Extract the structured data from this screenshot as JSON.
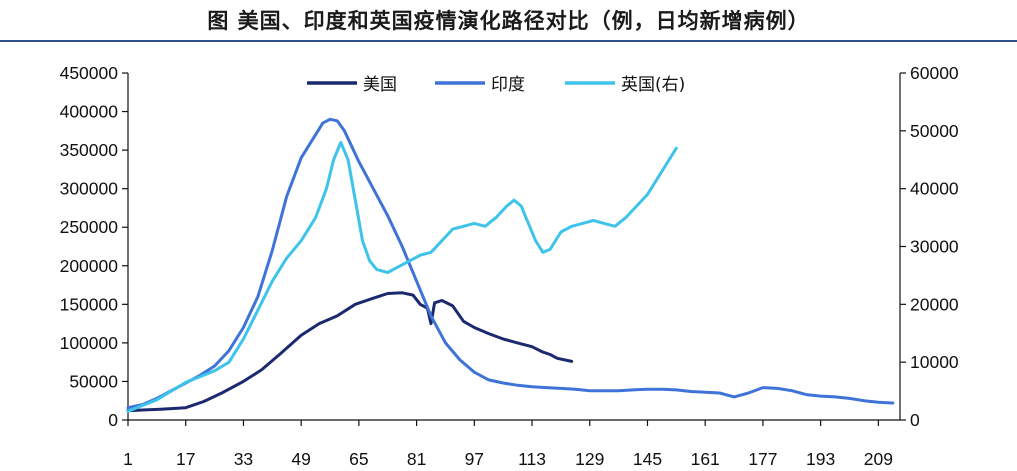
{
  "title": "图  美国、印度和英国疫情演化路径对比（例，日均新增病例）",
  "chart_data": {
    "type": "line",
    "title": "图  美国、印度和英国疫情演化路径对比（例，日均新增病例）",
    "xlabel": "",
    "ylabel": "",
    "x_ticks": [
      "1",
      "17",
      "33",
      "49",
      "65",
      "81",
      "97",
      "113",
      "129",
      "145",
      "161",
      "177",
      "193",
      "209"
    ],
    "y_left_ticks": [
      "0",
      "50000",
      "100000",
      "150000",
      "200000",
      "250000",
      "300000",
      "350000",
      "400000",
      "450000"
    ],
    "y_right_ticks": [
      "0",
      "10000",
      "20000",
      "30000",
      "40000",
      "50000",
      "60000"
    ],
    "xlim": [
      1,
      215
    ],
    "ylim_left": [
      0,
      450000
    ],
    "ylim_right": [
      0,
      60000
    ],
    "legend_position": "top",
    "grid": false,
    "series": [
      {
        "name": "美国",
        "axis": "left",
        "color": "#1b2a6e",
        "x": [
          1,
          5,
          10,
          17,
          22,
          27,
          33,
          38,
          43,
          49,
          54,
          59,
          64,
          69,
          73,
          77,
          80,
          82,
          84,
          85,
          86,
          88,
          91,
          94,
          97,
          101,
          105,
          109,
          113,
          116,
          118,
          120,
          124
        ],
        "y": [
          12000,
          13000,
          14000,
          16000,
          24000,
          35000,
          50000,
          65000,
          85000,
          110000,
          125000,
          135000,
          150000,
          158000,
          164000,
          165000,
          162000,
          150000,
          145000,
          125000,
          152000,
          155000,
          148000,
          128000,
          120000,
          112000,
          105000,
          100000,
          95000,
          88000,
          85000,
          80000,
          76000
        ]
      },
      {
        "name": "印度",
        "axis": "left",
        "color": "#3f73d8",
        "x": [
          1,
          5,
          9,
          13,
          17,
          21,
          25,
          29,
          33,
          37,
          41,
          45,
          49,
          53,
          55,
          57,
          59,
          61,
          63,
          65,
          69,
          73,
          77,
          81,
          85,
          89,
          93,
          97,
          101,
          105,
          109,
          113,
          117,
          121,
          125,
          129,
          133,
          137,
          141,
          145,
          149,
          153,
          157,
          161,
          165,
          169,
          173,
          177,
          181,
          185,
          189,
          193,
          197,
          201,
          205,
          209,
          213
        ],
        "y": [
          16000,
          20000,
          28000,
          38000,
          48000,
          58000,
          70000,
          90000,
          120000,
          160000,
          220000,
          290000,
          340000,
          370000,
          385000,
          390000,
          388000,
          375000,
          355000,
          335000,
          300000,
          265000,
          225000,
          180000,
          135000,
          100000,
          78000,
          62000,
          52000,
          48000,
          45000,
          43000,
          42000,
          41000,
          40000,
          38000,
          38000,
          38000,
          39000,
          40000,
          40000,
          39000,
          37000,
          36000,
          35000,
          30000,
          35000,
          42000,
          41000,
          38000,
          33000,
          31000,
          30000,
          28000,
          25000,
          23000,
          22000
        ]
      },
      {
        "name": "英国(右)",
        "axis": "right",
        "color": "#3ec4ea",
        "x": [
          1,
          5,
          9,
          13,
          17,
          21,
          25,
          29,
          33,
          37,
          41,
          45,
          49,
          53,
          56,
          58,
          60,
          62,
          64,
          66,
          68,
          70,
          73,
          76,
          79,
          82,
          85,
          88,
          91,
          94,
          97,
          100,
          103,
          106,
          108,
          110,
          112,
          114,
          116,
          118,
          121,
          124,
          127,
          130,
          133,
          136,
          139,
          142,
          145,
          148,
          151,
          153
        ],
        "y": [
          1500,
          2500,
          3500,
          5000,
          6500,
          7500,
          8500,
          10000,
          14000,
          19000,
          24000,
          28000,
          31000,
          35000,
          40000,
          45000,
          48000,
          45000,
          38000,
          31000,
          27500,
          26000,
          25500,
          26500,
          27500,
          28500,
          29000,
          31000,
          33000,
          33500,
          34000,
          33500,
          35000,
          37000,
          38000,
          37000,
          34000,
          31000,
          29000,
          29500,
          32500,
          33500,
          34000,
          34500,
          34000,
          33500,
          35000,
          37000,
          39000,
          42000,
          45000,
          47000
        ]
      }
    ]
  }
}
